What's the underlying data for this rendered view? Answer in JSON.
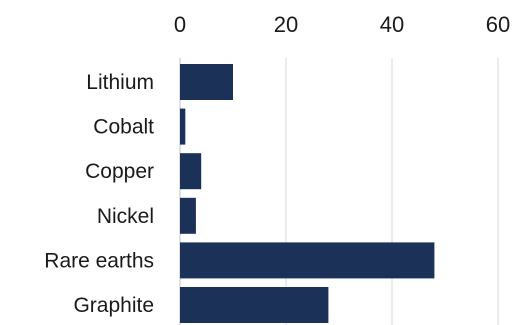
{
  "chart_data": {
    "type": "bar",
    "orientation": "horizontal",
    "title": "",
    "xlabel": "",
    "ylabel": "",
    "categories": [
      "Lithium",
      "Cobalt",
      "Copper",
      "Nickel",
      "Rare earths",
      "Graphite"
    ],
    "values": [
      10,
      1,
      4,
      3,
      48,
      28
    ],
    "xlim": [
      0,
      60
    ],
    "x_ticks": [
      0,
      20,
      40,
      60
    ],
    "x_tick_labels": [
      "0",
      "20",
      "40",
      "60"
    ],
    "tick_position": "top",
    "grid": true,
    "legend": "none",
    "colors": {
      "bar": "#1b3157",
      "grid": "#d9d9d9",
      "text": "#1a1a1a"
    }
  }
}
